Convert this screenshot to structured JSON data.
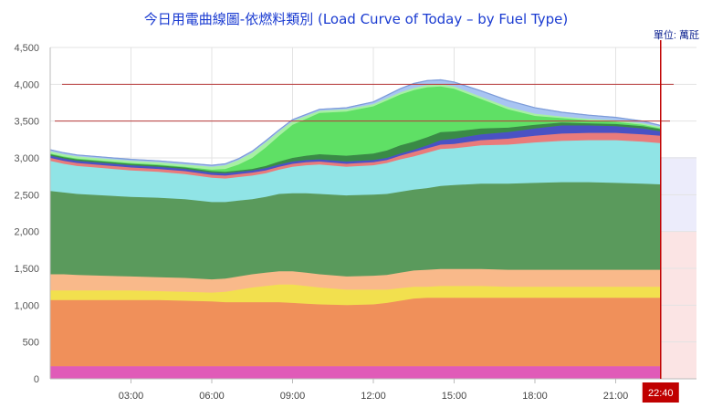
{
  "chart_data": {
    "type": "area",
    "title": "今日用電曲線圖-依燃料類別 (Load Curve of Today – by Fuel Type)",
    "unit": "單位: 萬瓩",
    "ylim": [
      0,
      4500
    ],
    "yticks": [
      0,
      500,
      1000,
      1500,
      2000,
      2500,
      3000,
      3500,
      4000,
      4500
    ],
    "xlim": [
      0,
      24
    ],
    "xticks": [
      {
        "x": 3,
        "label": "03:00"
      },
      {
        "x": 6,
        "label": "06:00"
      },
      {
        "x": 9,
        "label": "09:00"
      },
      {
        "x": 12,
        "label": "12:00"
      },
      {
        "x": 15,
        "label": "15:00"
      },
      {
        "x": 18,
        "label": "18:00"
      },
      {
        "x": 21,
        "label": "21:00"
      }
    ],
    "current_time": {
      "x": 22.67,
      "label": "22:40"
    },
    "reference_lines": [
      4000,
      3500
    ],
    "x": [
      0,
      0.5,
      1,
      2,
      3,
      4,
      5,
      6,
      6.5,
      7,
      7.5,
      8,
      8.5,
      9,
      9.5,
      10,
      11,
      12,
      12.5,
      13,
      13.5,
      14,
      14.5,
      15,
      16,
      17,
      18,
      19,
      20,
      21,
      22,
      22.67
    ],
    "series": [
      {
        "name": "",
        "color": "#e05bb8",
        "values": [
          170,
          170,
          170,
          170,
          170,
          170,
          170,
          170,
          170,
          170,
          170,
          170,
          170,
          170,
          170,
          170,
          170,
          170,
          170,
          170,
          170,
          170,
          170,
          170,
          170,
          170,
          170,
          170,
          170,
          170,
          170,
          170
        ]
      },
      {
        "name": "",
        "color": "#f0905a",
        "values": [
          900,
          900,
          900,
          900,
          900,
          900,
          890,
          880,
          870,
          870,
          870,
          870,
          870,
          860,
          850,
          840,
          830,
          840,
          860,
          890,
          920,
          930,
          930,
          930,
          930,
          930,
          930,
          930,
          930,
          930,
          930,
          930
        ]
      },
      {
        "name": "",
        "color": "#f2e04e",
        "values": [
          130,
          130,
          130,
          130,
          130,
          120,
          120,
          120,
          140,
          170,
          200,
          220,
          240,
          250,
          240,
          230,
          210,
          200,
          180,
          170,
          160,
          150,
          160,
          160,
          160,
          150,
          150,
          150,
          150,
          150,
          150,
          150
        ]
      },
      {
        "name": "",
        "color": "#f9b98a",
        "values": [
          220,
          220,
          210,
          200,
          190,
          190,
          190,
          180,
          180,
          180,
          180,
          180,
          180,
          180,
          180,
          180,
          180,
          190,
          200,
          210,
          220,
          230,
          230,
          230,
          230,
          230,
          230,
          230,
          230,
          230,
          230,
          230
        ]
      },
      {
        "name": "",
        "color": "#5a9a5c",
        "values": [
          1130,
          1110,
          1100,
          1090,
          1080,
          1080,
          1070,
          1050,
          1040,
          1030,
          1020,
          1030,
          1050,
          1060,
          1080,
          1090,
          1100,
          1100,
          1100,
          1100,
          1100,
          1110,
          1130,
          1140,
          1160,
          1170,
          1180,
          1190,
          1190,
          1180,
          1170,
          1160
        ]
      },
      {
        "name": "",
        "color": "#90e4e6",
        "values": [
          410,
          390,
          380,
          370,
          360,
          350,
          340,
          330,
          320,
          320,
          320,
          320,
          330,
          360,
          380,
          400,
          390,
          400,
          420,
          440,
          450,
          480,
          500,
          500,
          520,
          530,
          550,
          560,
          570,
          580,
          570,
          560
        ]
      },
      {
        "name": "",
        "color": "#e97b7b",
        "values": [
          40,
          40,
          40,
          40,
          40,
          40,
          40,
          40,
          40,
          40,
          40,
          40,
          40,
          40,
          40,
          40,
          40,
          40,
          40,
          50,
          60,
          60,
          60,
          60,
          70,
          80,
          90,
          100,
          100,
          100,
          100,
          100
        ]
      },
      {
        "name": "",
        "color": "#4a52c4",
        "values": [
          30,
          30,
          30,
          30,
          30,
          30,
          30,
          30,
          30,
          30,
          30,
          30,
          30,
          30,
          30,
          30,
          30,
          30,
          30,
          30,
          30,
          40,
          60,
          70,
          80,
          90,
          100,
          110,
          100,
          90,
          80,
          60
        ]
      },
      {
        "name": "",
        "color": "#3a8a46",
        "values": [
          20,
          20,
          20,
          20,
          20,
          20,
          20,
          20,
          20,
          20,
          20,
          30,
          40,
          50,
          60,
          70,
          80,
          90,
          100,
          110,
          110,
          110,
          110,
          100,
          80,
          60,
          50,
          40,
          30,
          30,
          30,
          30
        ]
      },
      {
        "name": "",
        "color": "#5fe065",
        "values": [
          10,
          10,
          10,
          10,
          10,
          10,
          10,
          20,
          40,
          80,
          150,
          250,
          350,
          450,
          500,
          560,
          600,
          640,
          680,
          690,
          700,
          680,
          620,
          580,
          400,
          250,
          120,
          60,
          40,
          30,
          20,
          10
        ]
      },
      {
        "name": "",
        "color": "#a7f0a3",
        "values": [
          30,
          30,
          30,
          30,
          30,
          30,
          30,
          40,
          50,
          60,
          70,
          70,
          60,
          50,
          40,
          30,
          30,
          30,
          30,
          30,
          30,
          30,
          30,
          30,
          30,
          30,
          30,
          20,
          20,
          20,
          20,
          20
        ]
      },
      {
        "name": "",
        "color": "#a8c4f2",
        "values": [
          20,
          20,
          20,
          20,
          20,
          20,
          20,
          20,
          20,
          20,
          20,
          20,
          20,
          20,
          20,
          20,
          20,
          30,
          40,
          50,
          60,
          60,
          60,
          60,
          80,
          90,
          80,
          60,
          50,
          40,
          30,
          20
        ]
      }
    ]
  }
}
